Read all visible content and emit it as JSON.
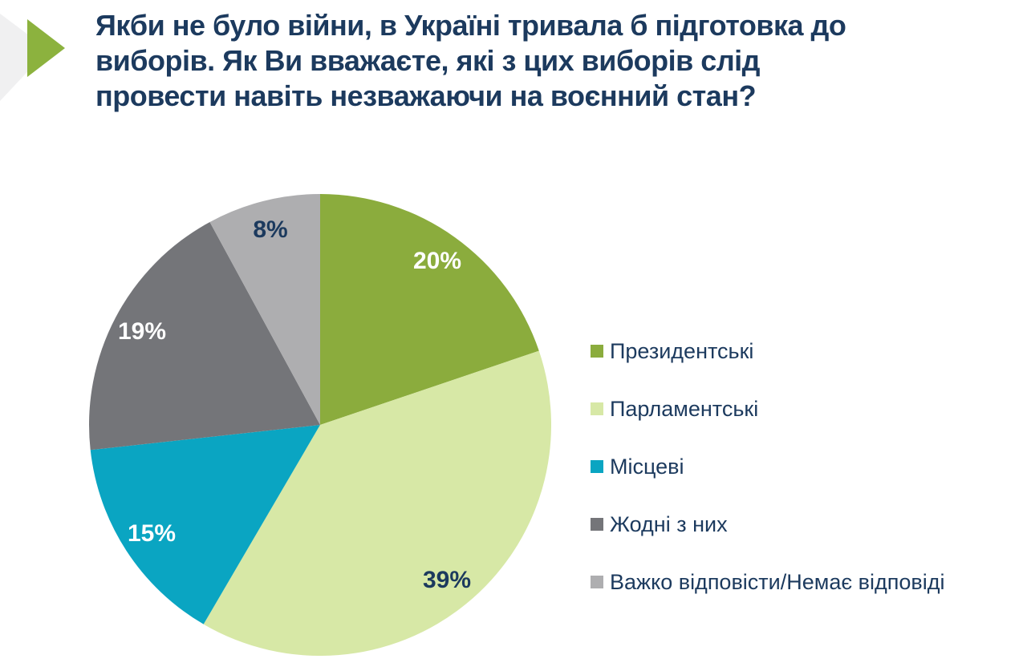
{
  "page": {
    "background": "#ffffff",
    "accent_navy": "#1C3A5E"
  },
  "decoration": {
    "gray_triangle_color": "#F0F0F1",
    "green_arrow_color": "#8CB23E"
  },
  "title": {
    "color": "#1C3A5E",
    "lines": [
      "Якби не було війни, в Україні тривала б підготовка до",
      "виборів. Як Ви вважаєте, які з цих виборів слід",
      "провести навіть незважаючи на воєнний стан?"
    ],
    "full_text": "Якби не було війни, в Україні тривала б підготовка до виборів. Як Ви вважаєте, які з цих виборів слід провести навіть незважаючи на воєнний стан?"
  },
  "chart_data": {
    "type": "pie",
    "categories": [
      "Президентські",
      "Парламентські",
      "Місцеві",
      "Жодні з них",
      "Важко відповісти/Немає відповіді"
    ],
    "values": [
      20,
      39,
      15,
      19,
      8
    ],
    "unit": "%",
    "data_labels": [
      "20%",
      "39%",
      "15%",
      "19%",
      "8%"
    ],
    "colors": [
      "#8BAC3D",
      "#D7E8A6",
      "#0AA5C2",
      "#747579",
      "#AEAEB0"
    ],
    "label_colors": [
      "#FFFFFF",
      "#1C3A5E",
      "#FFFFFF",
      "#FFFFFF",
      "#1C3A5E"
    ],
    "start_angle_deg": 0,
    "direction": "clockwise",
    "label_radius_ratio": 0.87,
    "legend_position": "right",
    "title": ""
  },
  "legend": {
    "items": [
      {
        "label": "Президентські",
        "color": "#8BAC3D"
      },
      {
        "label": "Парламентські",
        "color": "#D7E8A6"
      },
      {
        "label": "Місцеві",
        "color": "#0AA5C2"
      },
      {
        "label": "Жодні з них",
        "color": "#747579"
      },
      {
        "label": "Важко відповісти/Немає відповіді",
        "color": "#AEAEB0"
      }
    ]
  }
}
